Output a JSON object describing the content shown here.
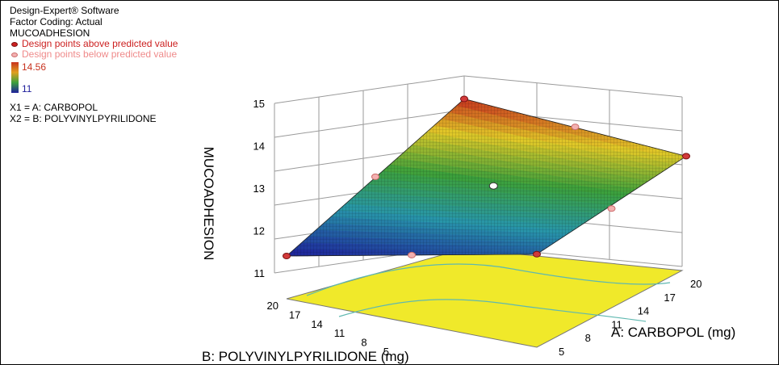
{
  "header": {
    "software": "Design-Expert® Software",
    "coding": "Factor Coding: Actual",
    "response": "MUCOADHESION"
  },
  "legend": {
    "above": "Design points above predicted value",
    "below": "Design points below predicted value",
    "max_label": "14.56",
    "min_label": "11",
    "colors": {
      "above": "#cc1f1f",
      "below": "#ef8a8a",
      "gradient_top": "#c8321e",
      "gradient_mid": "#3ca03c",
      "gradient_bottom": "#1e1e9b"
    }
  },
  "factors": {
    "x1": "X1 = A: CARBOPOL",
    "x2": "X2 = B: POLYVINYLPYRILIDONE"
  },
  "chart_data": {
    "type": "surface",
    "zlabel": "MUCOADHESION",
    "xlabel": "A: CARBOPOL (mg)",
    "ylabel": "B: POLYVINYLPYRILIDONE (mg)",
    "x_ticks": [
      "5",
      "8",
      "11",
      "14",
      "17",
      "20"
    ],
    "y_ticks": [
      "20",
      "17",
      "14",
      "11",
      "8",
      "5"
    ],
    "z_ticks": [
      "11",
      "12",
      "13",
      "14",
      "15"
    ],
    "xlim": [
      5,
      20
    ],
    "ylim": [
      5,
      20
    ],
    "zlim": [
      11,
      15
    ],
    "corners": [
      {
        "a": 5,
        "b": 5,
        "z": 11.6
      },
      {
        "a": 20,
        "b": 5,
        "z": 13.8
      },
      {
        "a": 5,
        "b": 20,
        "z": 11.0
      },
      {
        "a": 20,
        "b": 20,
        "z": 14.56
      }
    ],
    "center": {
      "a": 12.5,
      "b": 12.5,
      "z": 12.9
    },
    "design_points": [
      {
        "a": 5,
        "b": 5,
        "z": 11.6,
        "position": "above"
      },
      {
        "a": 20,
        "b": 5,
        "z": 13.8,
        "position": "above"
      },
      {
        "a": 5,
        "b": 20,
        "z": 11.0,
        "position": "above"
      },
      {
        "a": 20,
        "b": 20,
        "z": 14.56,
        "position": "above"
      },
      {
        "a": 12.5,
        "b": 12.5,
        "z": 12.9,
        "position": "center"
      },
      {
        "a": 12.5,
        "b": 20,
        "z": 12.8,
        "position": "below"
      },
      {
        "a": 12.5,
        "b": 5,
        "z": 12.6,
        "position": "below"
      },
      {
        "a": 5,
        "b": 12.5,
        "z": 11.3,
        "position": "below"
      },
      {
        "a": 20,
        "b": 12.5,
        "z": 14.2,
        "position": "below"
      }
    ]
  }
}
